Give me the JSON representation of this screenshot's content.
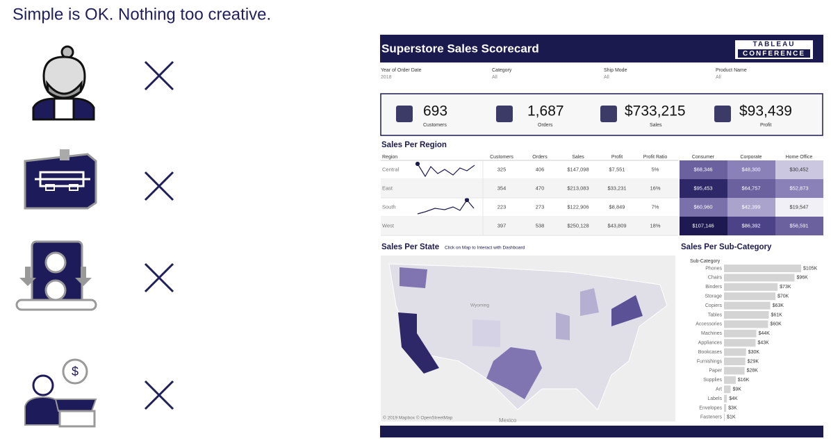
{
  "heading": "Simple is OK. Nothing too creative.",
  "dashboard": {
    "title": "Superstore Sales Scorecard",
    "logo": [
      "TABLEAU",
      "CONFERENCE"
    ],
    "filters": [
      {
        "label": "Year of Order Date",
        "value": "2018"
      },
      {
        "label": "Category",
        "value": "All"
      },
      {
        "label": "Ship Mode",
        "value": "All"
      },
      {
        "label": "Product Name",
        "value": "All"
      }
    ],
    "kpis": [
      {
        "value": "693",
        "label": "Customers"
      },
      {
        "value": "1,687",
        "label": "Orders"
      },
      {
        "value": "$733,215",
        "label": "Sales"
      },
      {
        "value": "$93,439",
        "label": "Profit"
      }
    ],
    "region": {
      "title": "Sales Per Region",
      "columns": [
        "Region",
        "Customers",
        "Orders",
        "Sales",
        "Profit",
        "Profit Ratio",
        "Consumer",
        "Corporate",
        "Home Office"
      ],
      "rows": [
        [
          "Central",
          "325",
          "406",
          "$147,098",
          "$7,551",
          "5%",
          "$68,346",
          "$48,300",
          "$30,452"
        ],
        [
          "East",
          "354",
          "470",
          "$213,083",
          "$33,231",
          "16%",
          "$95,453",
          "$64,757",
          "$52,873"
        ],
        [
          "South",
          "223",
          "273",
          "$122,906",
          "$8,849",
          "7%",
          "$60,960",
          "$42,399",
          "$19,547"
        ],
        [
          "West",
          "397",
          "538",
          "$250,128",
          "$43,809",
          "18%",
          "$107,146",
          "$86,392",
          "$56,591"
        ]
      ],
      "heat_colors": [
        [
          "#6b619f",
          "#8a81b8",
          "#cbc7e0"
        ],
        [
          "#2f2868",
          "#6b619f",
          "#8a81b8"
        ],
        [
          "#7a70aa",
          "#aaa4cc",
          "#f1f0f6"
        ],
        [
          "#1e1951",
          "#4b4288",
          "#6b619f"
        ]
      ]
    },
    "state": {
      "title": "Sales Per State",
      "note": "Click on Map to Interact with Dashboard",
      "credit": "© 2019 Mapbox © OpenStreetMap",
      "labels": [
        "Wyoming",
        "Mexico"
      ]
    }
  },
  "chart_data": {
    "type": "bar",
    "title": "Sales Per Sub-Category",
    "axis_label": "Sub-Category",
    "categories": [
      "Phones",
      "Chairs",
      "Binders",
      "Storage",
      "Copiers",
      "Tables",
      "Accessories",
      "Machines",
      "Appliances",
      "Bookcases",
      "Furnishings",
      "Paper",
      "Supplies",
      "Art",
      "Labels",
      "Envelopes",
      "Fasteners"
    ],
    "values": [
      105000,
      96000,
      73000,
      70000,
      63000,
      61000,
      60000,
      44000,
      43000,
      30000,
      29000,
      28000,
      16000,
      9000,
      4000,
      3000,
      1000
    ],
    "value_labels": [
      "$105K",
      "$96K",
      "$73K",
      "$70K",
      "$63K",
      "$61K",
      "$60K",
      "$44K",
      "$43K",
      "$30K",
      "$29K",
      "$28K",
      "$16K",
      "$9K",
      "$4K",
      "$3K",
      "$1K"
    ],
    "xlim": [
      0,
      105000
    ],
    "color": "#d4d4d4"
  }
}
